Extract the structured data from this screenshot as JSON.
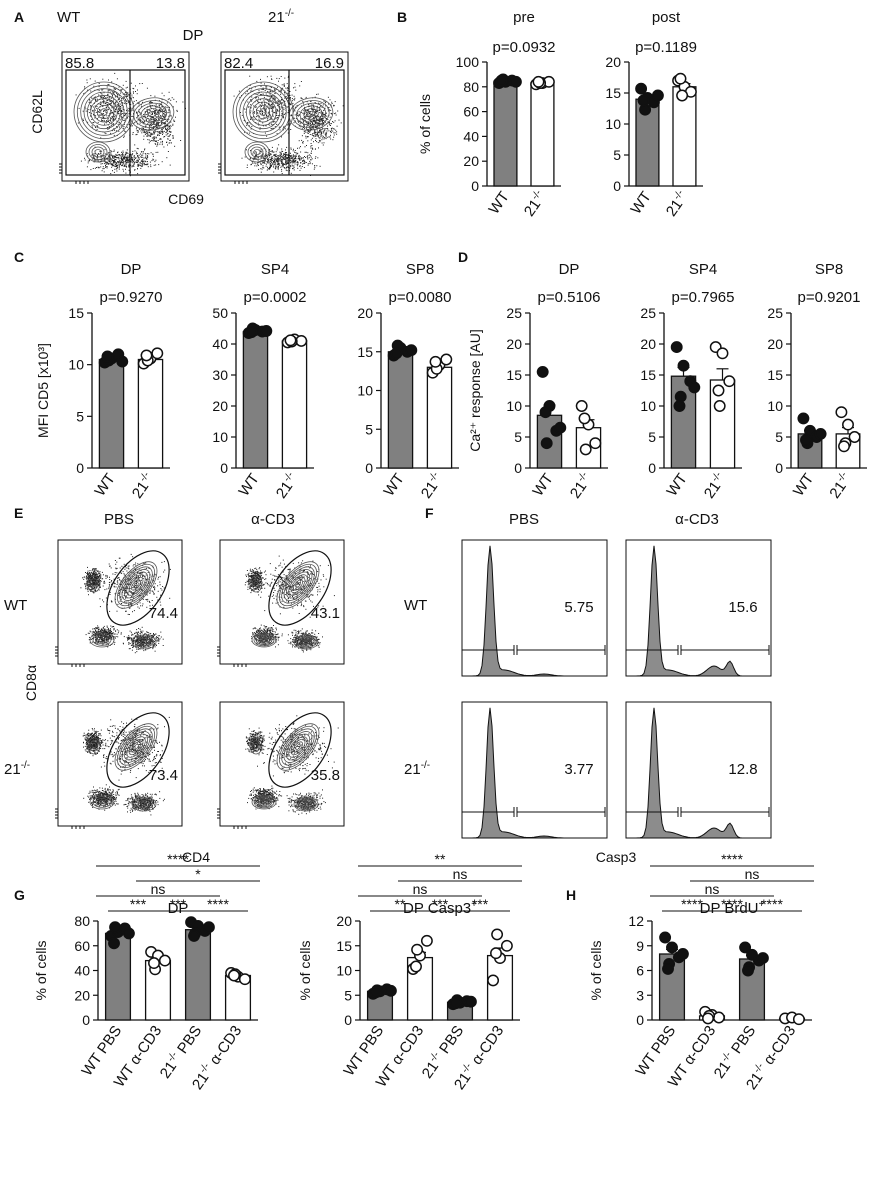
{
  "colors": {
    "filled": "#808080",
    "open": "#ffffff",
    "ink": "#111111",
    "histfill": "#8c8c8c"
  },
  "panel_letters": [
    "A",
    "B",
    "C",
    "D",
    "E",
    "F",
    "G",
    "H"
  ],
  "panelA": {
    "col_labels": [
      "WT",
      "21"
    ],
    "col_sup": "-/-",
    "title": "DP",
    "xlabel": "CD69",
    "ylabel": "CD62L",
    "gates": [
      [
        "85.8",
        "13.8"
      ],
      [
        "82.4",
        "16.9"
      ]
    ]
  },
  "panelE": {
    "col_labels": [
      "PBS",
      "α-CD3"
    ],
    "row_labels": [
      "WT",
      "21"
    ],
    "row_sup": "-/-",
    "xlabel": "CD4",
    "ylabel": "CD8α",
    "values": [
      [
        "74.4",
        "43.1"
      ],
      [
        "73.4",
        "35.8"
      ]
    ]
  },
  "panelF": {
    "col_labels": [
      "PBS",
      "α-CD3"
    ],
    "row_labels": [
      "WT",
      "21"
    ],
    "row_sup": "-/-",
    "xlabel": "Casp3",
    "values": [
      [
        "5.75",
        "15.6"
      ],
      [
        "3.77",
        "12.8"
      ]
    ]
  },
  "chart_data": [
    {
      "panel": "B",
      "type": "bar",
      "title": "pre",
      "pvalue": "p=0.0932",
      "ylabel": "% of cells",
      "ylim": [
        0,
        100
      ],
      "yticks": [
        0,
        20,
        40,
        60,
        80,
        100
      ],
      "categories": [
        "WT",
        "21-/-"
      ],
      "values": [
        84.5,
        83.2
      ],
      "points": [
        [
          83,
          84,
          85,
          86,
          85,
          84
        ],
        [
          82,
          83,
          84,
          83,
          84
        ]
      ]
    },
    {
      "panel": "B",
      "type": "bar",
      "title": "post",
      "pvalue": "p=0.1189",
      "ylabel": "",
      "ylim": [
        0,
        20
      ],
      "yticks": [
        0,
        5,
        10,
        15,
        20
      ],
      "categories": [
        "WT",
        "21-/-"
      ],
      "values": [
        14,
        16
      ],
      "points": [
        [
          15.7,
          14.2,
          13.5,
          12.3,
          13.8,
          14.6
        ],
        [
          17,
          16,
          15.2,
          14.6,
          17.3
        ]
      ]
    },
    {
      "panel": "C",
      "type": "bar",
      "title": "DP",
      "pvalue": "p=0.9270",
      "ylabel": "MFI CD5 [x10³]",
      "ylim": [
        0,
        15
      ],
      "yticks": [
        0,
        5,
        10,
        15
      ],
      "categories": [
        "WT",
        "21-/-"
      ],
      "values": [
        10.5,
        10.5
      ],
      "points": [
        [
          10.2,
          10.6,
          11,
          10.4,
          10.8,
          10.3
        ],
        [
          10.1,
          10.6,
          11.1,
          10.4,
          10.9
        ]
      ]
    },
    {
      "panel": "C",
      "type": "bar",
      "title": "SP4",
      "pvalue": "p=0.0002",
      "ylabel": "",
      "ylim": [
        0,
        50
      ],
      "yticks": [
        0,
        10,
        20,
        30,
        40,
        50
      ],
      "categories": [
        "WT",
        "21-/-"
      ],
      "values": [
        44,
        41
      ],
      "points": [
        [
          43.5,
          44.5,
          44,
          45,
          43.8,
          44.2
        ],
        [
          40.5,
          41.5,
          41,
          40.8,
          41.2
        ]
      ]
    },
    {
      "panel": "C",
      "type": "bar",
      "title": "SP8",
      "pvalue": "p=0.0080",
      "ylabel": "",
      "ylim": [
        0,
        20
      ],
      "yticks": [
        0,
        5,
        10,
        15,
        20
      ],
      "categories": [
        "WT",
        "21-/-"
      ],
      "values": [
        15,
        13
      ],
      "points": [
        [
          14.5,
          15.5,
          15,
          15.8,
          14.8,
          15.2
        ],
        [
          12.3,
          13.3,
          14,
          12.8,
          13.7
        ]
      ]
    },
    {
      "panel": "D",
      "type": "bar",
      "title": "DP",
      "pvalue": "p=0.5106",
      "ylabel": "Ca²⁺ response [AU]",
      "ylim": [
        0,
        25
      ],
      "yticks": [
        0,
        5,
        10,
        15,
        20,
        25
      ],
      "categories": [
        "WT",
        "21-/-"
      ],
      "values": [
        8.5,
        6.5
      ],
      "points": [
        [
          15.5,
          10,
          6,
          4,
          9,
          6.5
        ],
        [
          10,
          7,
          4,
          3,
          8
        ]
      ]
    },
    {
      "panel": "D",
      "type": "bar",
      "title": "SP4",
      "pvalue": "p=0.7965",
      "ylabel": "",
      "ylim": [
        0,
        25
      ],
      "yticks": [
        0,
        5,
        10,
        15,
        20,
        25
      ],
      "categories": [
        "WT",
        "21-/-"
      ],
      "values": [
        14.8,
        14.2
      ],
      "points": [
        [
          19.5,
          16.5,
          14,
          11.5,
          10,
          13
        ],
        [
          19.5,
          18.5,
          14,
          10,
          12.5
        ]
      ]
    },
    {
      "panel": "D",
      "type": "bar",
      "title": "SP8",
      "pvalue": "p=0.9201",
      "ylabel": "",
      "ylim": [
        0,
        25
      ],
      "yticks": [
        0,
        5,
        10,
        15,
        20,
        25
      ],
      "categories": [
        "WT",
        "21-/-"
      ],
      "values": [
        5.5,
        5.5
      ],
      "points": [
        [
          8,
          6,
          5,
          4,
          4.5,
          5.5
        ],
        [
          9,
          7,
          5,
          4,
          3.5
        ]
      ]
    },
    {
      "panel": "G",
      "type": "bar",
      "title": "DP",
      "pvalue": "",
      "ylabel": "% of cells",
      "ylim": [
        0,
        80
      ],
      "yticks": [
        0,
        20,
        40,
        60,
        80
      ],
      "categories": [
        "WT PBS",
        "WT α-CD3",
        "21-/- PBS",
        "21-/- α-CD3"
      ],
      "values": [
        70,
        48,
        73,
        36
      ],
      "points": [
        [
          68,
          71,
          74,
          75,
          62,
          70
        ],
        [
          55,
          52,
          48,
          41,
          46
        ],
        [
          79,
          76,
          72,
          70,
          68,
          75
        ],
        [
          38,
          35,
          33,
          37,
          36
        ]
      ],
      "sig_lines": [
        {
          "a": 0,
          "b": 1,
          "label": "***",
          "level": 1
        },
        {
          "a": 1,
          "b": 2,
          "label": "***",
          "level": 1
        },
        {
          "a": 2,
          "b": 3,
          "label": "****",
          "level": 1
        },
        {
          "a": 0,
          "b": 2,
          "label": "ns",
          "level": 2
        },
        {
          "a": 1,
          "b": 3,
          "label": "*",
          "level": 3
        },
        {
          "a": 0,
          "b": 3,
          "label": "****",
          "level": 4
        }
      ]
    },
    {
      "panel": "G",
      "type": "bar",
      "title": "DP Casp3",
      "title_sup": "+",
      "pvalue": "",
      "ylabel": "% of cells",
      "ylim": [
        0,
        20
      ],
      "yticks": [
        0,
        5,
        10,
        15,
        20
      ],
      "categories": [
        "WT PBS",
        "WT α-CD3",
        "21-/- PBS",
        "21-/- α-CD3"
      ],
      "values": [
        5.8,
        12.6,
        3.6,
        13
      ],
      "points": [
        [
          5.3,
          5.8,
          6.2,
          6,
          5.6,
          5.9
        ],
        [
          10.3,
          13,
          16,
          14.2,
          10.8
        ],
        [
          3.2,
          3.5,
          3.8,
          4,
          3.4,
          3.7
        ],
        [
          8,
          12.5,
          15,
          17.3,
          13.5
        ]
      ],
      "sig_lines": [
        {
          "a": 0,
          "b": 1,
          "label": "**",
          "level": 1
        },
        {
          "a": 1,
          "b": 2,
          "label": "***",
          "level": 1
        },
        {
          "a": 2,
          "b": 3,
          "label": "***",
          "level": 1
        },
        {
          "a": 0,
          "b": 2,
          "label": "ns",
          "level": 2
        },
        {
          "a": 1,
          "b": 3,
          "label": "ns",
          "level": 3
        },
        {
          "a": 0,
          "b": 3,
          "label": "**",
          "level": 4
        }
      ]
    },
    {
      "panel": "H",
      "type": "bar",
      "title": "DP BrdU",
      "title_sup": "+",
      "pvalue": "",
      "ylabel": "% of cells",
      "ylim": [
        0,
        12
      ],
      "yticks": [
        0,
        3,
        6,
        9,
        12
      ],
      "categories": [
        "WT PBS",
        "WT α-CD3",
        "21-/- PBS",
        "21-/- α-CD3"
      ],
      "values": [
        8,
        0.5,
        7.4,
        0.2
      ],
      "points": [
        [
          10,
          8.8,
          7.6,
          6.8,
          6.2,
          8
        ],
        [
          1,
          0.6,
          0.3,
          0.5,
          0.2
        ],
        [
          8.8,
          7.9,
          7.2,
          6.4,
          6,
          7.5
        ],
        [
          0.2,
          0.3,
          0.1
        ]
      ],
      "sig_lines": [
        {
          "a": 0,
          "b": 1,
          "label": "****",
          "level": 1
        },
        {
          "a": 1,
          "b": 2,
          "label": "****",
          "level": 1
        },
        {
          "a": 2,
          "b": 3,
          "label": "****",
          "level": 1
        },
        {
          "a": 0,
          "b": 2,
          "label": "ns",
          "level": 2
        },
        {
          "a": 1,
          "b": 3,
          "label": "ns",
          "level": 3
        },
        {
          "a": 0,
          "b": 3,
          "label": "****",
          "level": 4
        }
      ]
    }
  ]
}
